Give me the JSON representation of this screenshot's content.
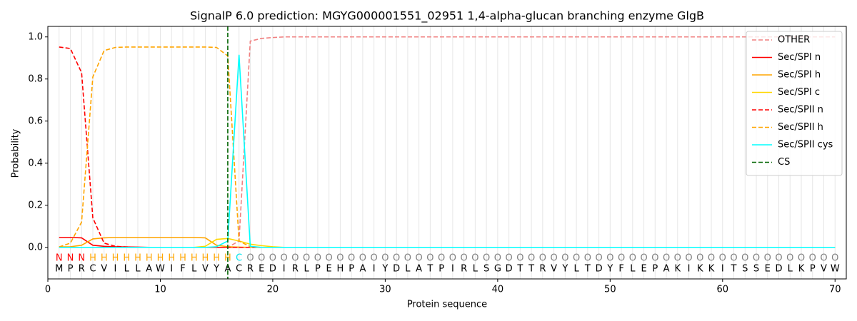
{
  "chart_data": {
    "type": "line",
    "title": "SignalP 6.0 prediction: MGYG000001551_02951 1,4-alpha-glucan branching enzyme GlgB",
    "xlabel": "Protein sequence",
    "ylabel": "Probability",
    "xlim": [
      0,
      71
    ],
    "xticks": [
      0,
      10,
      20,
      30,
      40,
      50,
      60,
      70
    ],
    "ylim": [
      -0.15,
      1.05
    ],
    "yticks": [
      {
        "value": 0,
        "label": "0.0"
      },
      {
        "value": 0.2,
        "label": "0.2"
      },
      {
        "value": 0.4,
        "label": "0.4"
      },
      {
        "value": 0.6,
        "label": "0.6"
      },
      {
        "value": 0.8,
        "label": "0.8"
      },
      {
        "value": 1,
        "label": "1.0"
      }
    ],
    "legend": "upper right",
    "residue_lines": true,
    "x": [
      1,
      2,
      3,
      4,
      5,
      6,
      7,
      8,
      9,
      10,
      11,
      12,
      13,
      14,
      15,
      16,
      17,
      18,
      19,
      20,
      21,
      22,
      23,
      24,
      25,
      26,
      27,
      28,
      29,
      30,
      31,
      32,
      33,
      34,
      35,
      36,
      37,
      38,
      39,
      40,
      41,
      42,
      43,
      44,
      45,
      46,
      47,
      48,
      49,
      50,
      51,
      52,
      53,
      54,
      55,
      56,
      57,
      58,
      59,
      60,
      61,
      62,
      63,
      64,
      65,
      66,
      67,
      68,
      69,
      70
    ],
    "residues": [
      "M",
      "P",
      "R",
      "C",
      "V",
      "I",
      "L",
      "L",
      "A",
      "W",
      "I",
      "F",
      "L",
      "V",
      "Y",
      "A",
      "C",
      "R",
      "E",
      "D",
      "I",
      "R",
      "L",
      "P",
      "E",
      "H",
      "P",
      "A",
      "I",
      "Y",
      "D",
      "L",
      "A",
      "T",
      "P",
      "I",
      "R",
      "L",
      "S",
      "G",
      "D",
      "T",
      "T",
      "R",
      "V",
      "Y",
      "L",
      "T",
      "D",
      "Y",
      "F",
      "L",
      "E",
      "P",
      "A",
      "K",
      "I",
      "K",
      "K",
      "I",
      "T",
      "S",
      "S",
      "E",
      "D",
      "L",
      "K",
      "P",
      "V",
      "W"
    ],
    "regions": [
      "N",
      "N",
      "N",
      "H",
      "H",
      "H",
      "H",
      "H",
      "H",
      "H",
      "H",
      "H",
      "H",
      "H",
      "H",
      "H",
      "C",
      "O",
      "O",
      "O",
      "O",
      "O",
      "O",
      "O",
      "O",
      "O",
      "O",
      "O",
      "O",
      "O",
      "O",
      "O",
      "O",
      "O",
      "O",
      "O",
      "O",
      "O",
      "O",
      "O",
      "O",
      "O",
      "O",
      "O",
      "O",
      "O",
      "O",
      "O",
      "O",
      "O",
      "O",
      "O",
      "O",
      "O",
      "O",
      "O",
      "O",
      "O",
      "O",
      "O",
      "O",
      "O",
      "O",
      "O",
      "O",
      "O",
      "O",
      "O",
      "O",
      "O"
    ],
    "region_colors": {
      "N": "#ff0000",
      "H": "#ffa500",
      "C": "#00e5ee",
      "O": "#808080"
    },
    "series": [
      {
        "name": "OTHER",
        "color": "#f08080",
        "dashed": true,
        "values": [
          0,
          0,
          0,
          0,
          0,
          0,
          0,
          0,
          0,
          0,
          0,
          0,
          0,
          0,
          0,
          0,
          0.03,
          0.98,
          0.993,
          0.997,
          1,
          1,
          1,
          1,
          1,
          1,
          1,
          1,
          1,
          1,
          1,
          1,
          1,
          1,
          1,
          1,
          1,
          1,
          1,
          1,
          1,
          1,
          1,
          1,
          1,
          1,
          1,
          1,
          1,
          1,
          1,
          1,
          1,
          1,
          1,
          1,
          1,
          1,
          1,
          1,
          1,
          1,
          1,
          1,
          1,
          1,
          1,
          1,
          1,
          1
        ]
      },
      {
        "name": "Sec/SPI n",
        "color": "#ff0000",
        "dashed": false,
        "values": [
          0.047,
          0.047,
          0.045,
          0.01,
          0.005,
          0.003,
          0.002,
          0.001,
          0,
          0,
          0,
          0,
          0,
          0,
          0,
          0,
          0,
          0,
          0,
          0,
          0,
          0,
          0,
          0,
          0,
          0,
          0,
          0,
          0,
          0,
          0,
          0,
          0,
          0,
          0,
          0,
          0,
          0,
          0,
          0,
          0,
          0,
          0,
          0,
          0,
          0,
          0,
          0,
          0,
          0,
          0,
          0,
          0,
          0,
          0,
          0,
          0,
          0,
          0,
          0,
          0,
          0,
          0,
          0,
          0,
          0,
          0,
          0,
          0,
          0
        ]
      },
      {
        "name": "Sec/SPI h",
        "color": "#ffa500",
        "dashed": false,
        "values": [
          0.002,
          0.003,
          0.01,
          0.04,
          0.045,
          0.047,
          0.047,
          0.047,
          0.047,
          0.047,
          0.047,
          0.047,
          0.047,
          0.045,
          0.01,
          0.003,
          0.001,
          0,
          0,
          0,
          0,
          0,
          0,
          0,
          0,
          0,
          0,
          0,
          0,
          0,
          0,
          0,
          0,
          0,
          0,
          0,
          0,
          0,
          0,
          0,
          0,
          0,
          0,
          0,
          0,
          0,
          0,
          0,
          0,
          0,
          0,
          0,
          0,
          0,
          0,
          0,
          0,
          0,
          0,
          0,
          0,
          0,
          0,
          0,
          0,
          0,
          0,
          0,
          0,
          0
        ]
      },
      {
        "name": "Sec/SPI c",
        "color": "#ffd700",
        "dashed": false,
        "values": [
          0,
          0,
          0,
          0,
          0,
          0,
          0,
          0,
          0,
          0,
          0,
          0,
          0,
          0.005,
          0.038,
          0.042,
          0.03,
          0.015,
          0.008,
          0.003,
          0,
          0,
          0,
          0,
          0,
          0,
          0,
          0,
          0,
          0,
          0,
          0,
          0,
          0,
          0,
          0,
          0,
          0,
          0,
          0,
          0,
          0,
          0,
          0,
          0,
          0,
          0,
          0,
          0,
          0,
          0,
          0,
          0,
          0,
          0,
          0,
          0,
          0,
          0,
          0,
          0,
          0,
          0,
          0,
          0,
          0,
          0,
          0,
          0,
          0
        ]
      },
      {
        "name": "Sec/SPII n",
        "color": "#ff0000",
        "dashed": true,
        "values": [
          0.952,
          0.945,
          0.83,
          0.14,
          0.02,
          0.005,
          0.002,
          0,
          0,
          0,
          0,
          0,
          0,
          0,
          0,
          0,
          0,
          0,
          0,
          0,
          0,
          0,
          0,
          0,
          0,
          0,
          0,
          0,
          0,
          0,
          0,
          0,
          0,
          0,
          0,
          0,
          0,
          0,
          0,
          0,
          0,
          0,
          0,
          0,
          0,
          0,
          0,
          0,
          0,
          0,
          0,
          0,
          0,
          0,
          0,
          0,
          0,
          0,
          0,
          0,
          0,
          0,
          0,
          0,
          0,
          0,
          0,
          0,
          0,
          0
        ]
      },
      {
        "name": "Sec/SPII h",
        "color": "#ffa500",
        "dashed": true,
        "values": [
          0.002,
          0.02,
          0.12,
          0.81,
          0.935,
          0.95,
          0.952,
          0.952,
          0.952,
          0.952,
          0.952,
          0.952,
          0.952,
          0.952,
          0.95,
          0.91,
          0.03,
          0.003,
          0,
          0,
          0,
          0,
          0,
          0,
          0,
          0,
          0,
          0,
          0,
          0,
          0,
          0,
          0,
          0,
          0,
          0,
          0,
          0,
          0,
          0,
          0,
          0,
          0,
          0,
          0,
          0,
          0,
          0,
          0,
          0,
          0,
          0,
          0,
          0,
          0,
          0,
          0,
          0,
          0,
          0,
          0,
          0,
          0,
          0,
          0,
          0,
          0,
          0,
          0,
          0
        ]
      },
      {
        "name": "Sec/SPII cys",
        "color": "#00ffff",
        "dashed": false,
        "values": [
          0,
          0,
          0,
          0,
          0,
          0,
          0,
          0,
          0,
          0,
          0,
          0,
          0,
          0,
          0.003,
          0.03,
          0.915,
          0.005,
          0,
          0,
          0,
          0,
          0,
          0,
          0,
          0,
          0,
          0,
          0,
          0,
          0,
          0,
          0,
          0,
          0,
          0,
          0,
          0,
          0,
          0,
          0,
          0,
          0,
          0,
          0,
          0,
          0,
          0,
          0,
          0,
          0,
          0,
          0,
          0,
          0,
          0,
          0,
          0,
          0,
          0,
          0,
          0,
          0,
          0,
          0,
          0,
          0,
          0,
          0,
          0
        ]
      }
    ],
    "vlines": [
      {
        "name": "CS",
        "color": "#006400",
        "x": 16
      }
    ]
  }
}
